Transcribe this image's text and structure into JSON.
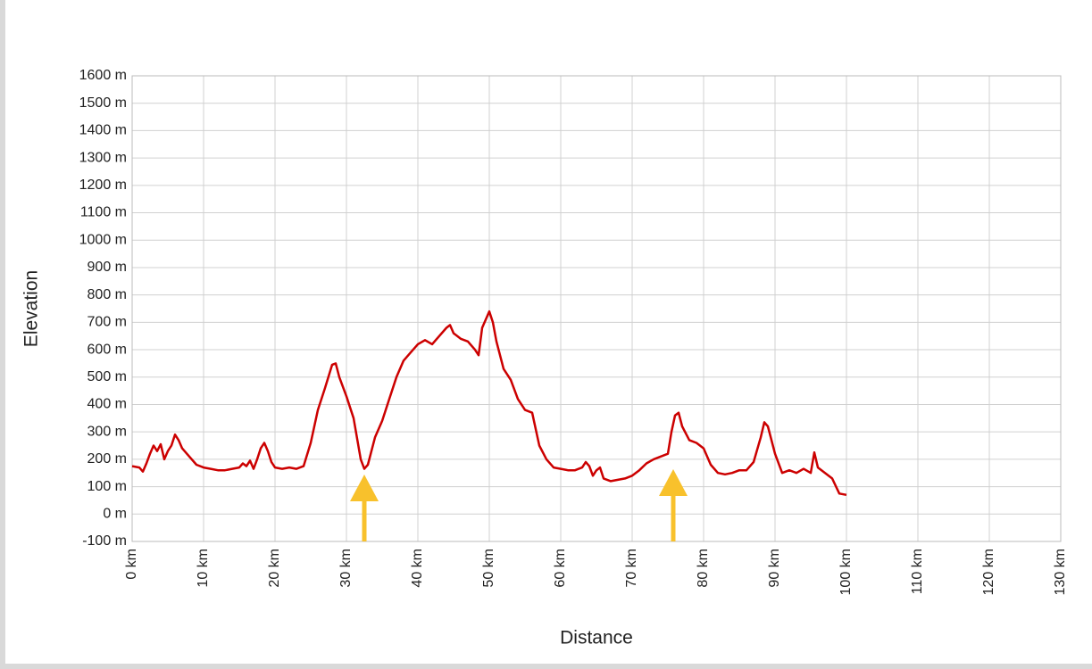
{
  "chart_data": {
    "type": "line",
    "x_label": "Distance",
    "y_label": "Elevation",
    "x": [
      0,
      1,
      1.5,
      2,
      2.5,
      3,
      3.5,
      4,
      4.5,
      5,
      5.5,
      6,
      6.5,
      7,
      8,
      9,
      10,
      11,
      12,
      13,
      14,
      15,
      15.5,
      16,
      16.5,
      17,
      17.5,
      18,
      18.5,
      19,
      19.5,
      20,
      21,
      22,
      23,
      24,
      25,
      26,
      27,
      28,
      28.5,
      29,
      30,
      31,
      32,
      32.5,
      33,
      34,
      35,
      36,
      37,
      38,
      39,
      40,
      41,
      42,
      43,
      44,
      44.5,
      45,
      46,
      47,
      48,
      48.5,
      49,
      50,
      50.5,
      51,
      51.5,
      52,
      53,
      54,
      55,
      56,
      57,
      58,
      59,
      60,
      61,
      62,
      63,
      63.5,
      64,
      64.5,
      65,
      65.5,
      66,
      67,
      68,
      69,
      70,
      71,
      72,
      73,
      74,
      75,
      75.5,
      76,
      76.5,
      77,
      78,
      79,
      80,
      81,
      82,
      83,
      84,
      85,
      86,
      87,
      88,
      88.5,
      89,
      90,
      91,
      92,
      93,
      94,
      95,
      95.5,
      96,
      97,
      98,
      99,
      100
    ],
    "values": [
      175,
      170,
      155,
      185,
      220,
      250,
      230,
      255,
      200,
      230,
      250,
      290,
      270,
      240,
      210,
      180,
      170,
      165,
      160,
      160,
      165,
      170,
      185,
      175,
      195,
      165,
      200,
      240,
      260,
      230,
      190,
      170,
      165,
      170,
      165,
      175,
      260,
      380,
      460,
      545,
      550,
      500,
      430,
      350,
      200,
      165,
      180,
      280,
      340,
      420,
      500,
      560,
      590,
      620,
      635,
      620,
      650,
      680,
      690,
      660,
      640,
      630,
      600,
      580,
      680,
      740,
      700,
      630,
      580,
      530,
      490,
      420,
      380,
      370,
      250,
      200,
      170,
      165,
      160,
      160,
      170,
      190,
      175,
      140,
      160,
      170,
      130,
      120,
      125,
      130,
      140,
      160,
      185,
      200,
      210,
      220,
      300,
      360,
      370,
      320,
      270,
      260,
      240,
      180,
      150,
      145,
      150,
      160,
      160,
      190,
      280,
      335,
      320,
      220,
      150,
      160,
      150,
      165,
      150,
      225,
      170,
      150,
      130,
      75,
      70
    ],
    "color": "#cc0000",
    "xlim": [
      0,
      130
    ],
    "xticks": [
      {
        "value": 0,
        "label": "0 km"
      },
      {
        "value": 10,
        "label": "10 km"
      },
      {
        "value": 20,
        "label": "20 km"
      },
      {
        "value": 30,
        "label": "30 km"
      },
      {
        "value": 40,
        "label": "40 km"
      },
      {
        "value": 50,
        "label": "50 km"
      },
      {
        "value": 60,
        "label": "60 km"
      },
      {
        "value": 70,
        "label": "70 km"
      },
      {
        "value": 80,
        "label": "80 km"
      },
      {
        "value": 90,
        "label": "90 km"
      },
      {
        "value": 100,
        "label": "100 km"
      },
      {
        "value": 110,
        "label": "110 km"
      },
      {
        "value": 120,
        "label": "120 km"
      },
      {
        "value": 130,
        "label": "130 km"
      }
    ],
    "ylim": [
      -100,
      1600
    ],
    "yticks": [
      {
        "value": -100,
        "label": "-100 m"
      },
      {
        "value": 0,
        "label": "0 m"
      },
      {
        "value": 100,
        "label": "100 m"
      },
      {
        "value": 200,
        "label": "200 m"
      },
      {
        "value": 300,
        "label": "300 m"
      },
      {
        "value": 400,
        "label": "400 m"
      },
      {
        "value": 500,
        "label": "500 m"
      },
      {
        "value": 600,
        "label": "600 m"
      },
      {
        "value": 700,
        "label": "700 m"
      },
      {
        "value": 800,
        "label": "800 m"
      },
      {
        "value": 900,
        "label": "900 m"
      },
      {
        "value": 1000,
        "label": "1000 m"
      },
      {
        "value": 1100,
        "label": "1100 m"
      },
      {
        "value": 1200,
        "label": "1200 m"
      },
      {
        "value": 1300,
        "label": "1300 m"
      },
      {
        "value": 1400,
        "label": "1400 m"
      },
      {
        "value": 1500,
        "label": "1500 m"
      },
      {
        "value": 1600,
        "label": "1600 m"
      }
    ],
    "grid": true
  }
}
